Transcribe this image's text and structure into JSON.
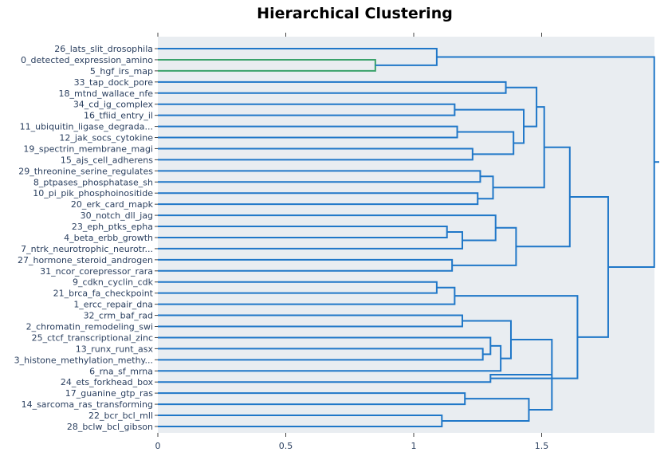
{
  "chart_data": {
    "type": "dendrogram",
    "title": "Hierarchical Clustering",
    "xlabel": "",
    "ylabel": "",
    "xlim": [
      0,
      1.94
    ],
    "x_ticks": [
      0,
      0.5,
      1,
      1.5
    ],
    "grid": false,
    "orientation": "horizontal, leaves on left",
    "colors": {
      "plot_bg": "#e9edf1",
      "primary_link": "#1f77c8",
      "highlight_link": "#3aa26b",
      "label": "#2a3f5f"
    },
    "leaves": [
      "26_lats_slit_drosophila",
      "0_detected_expression_amino",
      "5_hgf_irs_map",
      "33_tap_dock_pore",
      "18_mtnd_wallace_nfe",
      "34_cd_ig_complex",
      "16_tfiid_entry_il",
      "11_ubiquitin_ligase_degrada...",
      "12_jak_socs_cytokine",
      "19_spectrin_membrane_magi",
      "15_ajs_cell_adherens",
      "29_threonine_serine_regulates",
      "8_ptpases_phosphatase_sh",
      "10_pi_pik_phosphoinositide",
      "20_erk_card_mapk",
      "30_notch_dll_jag",
      "23_eph_ptks_epha",
      "4_beta_erbb_growth",
      "7_ntrk_neurotrophic_neurotr...",
      "27_hormone_steroid_androgen",
      "31_ncor_corepressor_rara",
      "9_cdkn_cyclin_cdk",
      "21_brca_fa_checkpoint",
      "1_ercc_repair_dna",
      "32_crm_baf_rad",
      "2_chromatin_remodeling_swi",
      "25_ctcf_transcriptional_zinc",
      "13_runx_runt_asx",
      "3_histone_methylation_methy...",
      "6_rna_sf_mrna",
      "24_ets_forkhead_box",
      "17_guanine_gtp_ras",
      "14_sarcoma_ras_transforming",
      "22_bcr_bcl_mll",
      "28_bclw_bcl_gibson"
    ],
    "merges": [
      {
        "id": "m1",
        "left": 1,
        "right": 2,
        "height": 0.85,
        "color": "highlight"
      },
      {
        "id": "m2",
        "left": 0,
        "right": "m1",
        "height": 1.09
      },
      {
        "id": "m3",
        "left": 5,
        "right": 6,
        "height": 1.16
      },
      {
        "id": "m4",
        "left": 7,
        "right": 8,
        "height": 1.17
      },
      {
        "id": "m5",
        "left": 9,
        "right": 10,
        "height": 1.23
      },
      {
        "id": "m6",
        "left": "m4",
        "right": "m5",
        "height": 1.39
      },
      {
        "id": "m7",
        "left": "m3",
        "right": "m6",
        "height": 1.43
      },
      {
        "id": "m8",
        "left": 3,
        "right": 4,
        "height": 1.36
      },
      {
        "id": "m9",
        "left": "m8",
        "right": "m7",
        "height": 1.48
      },
      {
        "id": "m10",
        "left": 11,
        "right": 12,
        "height": 1.26
      },
      {
        "id": "m11",
        "left": 13,
        "right": 14,
        "height": 1.25
      },
      {
        "id": "m12",
        "left": "m10",
        "right": "m11",
        "height": 1.31
      },
      {
        "id": "m13",
        "left": "m9",
        "right": "m12",
        "height": 1.51
      },
      {
        "id": "m14",
        "left": 16,
        "right": 17,
        "height": 1.13
      },
      {
        "id": "m15",
        "left": "m14",
        "right": 18,
        "height": 1.19
      },
      {
        "id": "m16",
        "left": 15,
        "right": "m15",
        "height": 1.32
      },
      {
        "id": "m17",
        "left": 19,
        "right": 20,
        "height": 1.15
      },
      {
        "id": "m18",
        "left": "m16",
        "right": "m17",
        "height": 1.4
      },
      {
        "id": "m19",
        "left": "m13",
        "right": "m18",
        "height": 1.61
      },
      {
        "id": "m20",
        "left": 21,
        "right": 22,
        "height": 1.09
      },
      {
        "id": "m21",
        "left": "m20",
        "right": 23,
        "height": 1.16
      },
      {
        "id": "m22",
        "left": 27,
        "right": 28,
        "height": 1.27
      },
      {
        "id": "m23",
        "left": 26,
        "right": "m22",
        "height": 1.3
      },
      {
        "id": "m24",
        "left": "m23",
        "right": 29,
        "height": 1.34
      },
      {
        "id": "m25",
        "left": 24,
        "right": 25,
        "height": 1.19
      },
      {
        "id": "m26",
        "left": "m25",
        "right": "m24",
        "height": 1.38
      },
      {
        "id": "m27",
        "left": 31,
        "right": 32,
        "height": 1.2
      },
      {
        "id": "m28",
        "left": 33,
        "right": 34,
        "height": 1.11
      },
      {
        "id": "m29",
        "left": "m27",
        "right": "m28",
        "height": 1.45
      },
      {
        "id": "m30",
        "left": "m26",
        "right": "m29",
        "height": 1.54
      },
      {
        "id": "m31",
        "left": 30,
        "right": "m30",
        "height": 1.3
      },
      {
        "id": "m32",
        "left": "m21",
        "right": "m31",
        "height": 1.64
      },
      {
        "id": "m33",
        "left": "m19",
        "right": "m32",
        "height": 1.76
      },
      {
        "id": "m34",
        "left": "m2",
        "right": "m33",
        "height": 1.94
      }
    ]
  }
}
